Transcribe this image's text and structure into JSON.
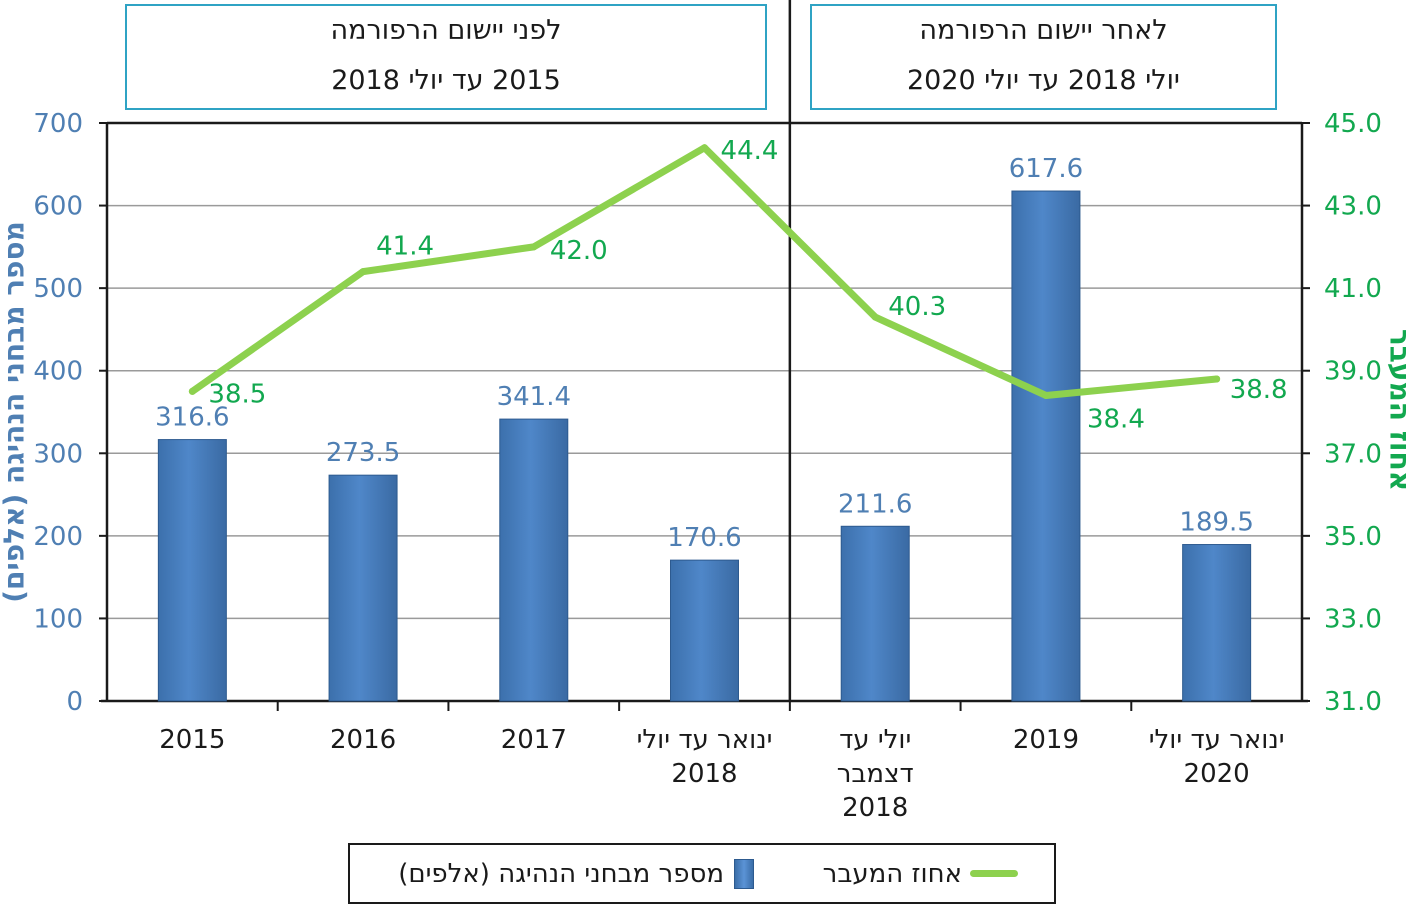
{
  "periods": [
    {
      "line1": "לאחר יישום הרפורמה",
      "line2": "יולי 2018 עד יולי 2020"
    },
    {
      "line1": "לפני יישום הרפורמה",
      "line2": "2015 עד יולי 2018"
    }
  ],
  "legend": {
    "line_label": "אחוז המעבר",
    "bar_label": "מספר מבחני הנהיגה (אלפים)"
  },
  "colors": {
    "bar": "#4f87c9",
    "line": "#8dd14e",
    "left_axis_text": "#4f7fb3",
    "right_axis_text": "#12a84f",
    "line_label_text": "#12a84f",
    "bar_label_text": "#4f7fb3"
  },
  "chart_data": {
    "type": "bar",
    "categories": [
      [
        "2015"
      ],
      [
        "2016"
      ],
      [
        "2017"
      ],
      [
        "ינואר עד יולי",
        "2018"
      ],
      [
        "יולי עד",
        "דצמבר",
        "2018"
      ],
      [
        "2019"
      ],
      [
        "ינואר עד יולי",
        "2020"
      ]
    ],
    "series": [
      {
        "name": "מספר מבחני הנהיגה (אלפים)",
        "type": "bar",
        "axis": "left",
        "values": [
          316.6,
          273.5,
          341.4,
          170.6,
          211.6,
          617.6,
          189.5
        ],
        "labels": [
          "316.6",
          "273.5",
          "341.4",
          "170.6",
          "211.6",
          "617.6",
          "189.5"
        ]
      },
      {
        "name": "אחוז המעבר",
        "type": "line",
        "axis": "right",
        "values": [
          38.5,
          41.4,
          42.0,
          44.4,
          40.3,
          38.4,
          38.8
        ],
        "labels": [
          "38.5",
          "41.4",
          "42.0",
          "44.4",
          "40.3",
          "38.4",
          "38.8"
        ]
      }
    ],
    "ylabel_left": "מספר מבחני הנהיגה (אלפים)",
    "ylabel_right": "אחוז המעבר",
    "ylim_left": [
      0,
      700
    ],
    "yticks_left": [
      "0",
      "100",
      "200",
      "300",
      "400",
      "500",
      "600",
      "700"
    ],
    "ylim_right": [
      31,
      45
    ],
    "yticks_right": [
      "31.0",
      "33.0",
      "35.0",
      "37.0",
      "39.0",
      "41.0",
      "43.0",
      "45.0"
    ],
    "grid": true,
    "reform_divider_after_category": 4,
    "legend_position": "bottom"
  }
}
